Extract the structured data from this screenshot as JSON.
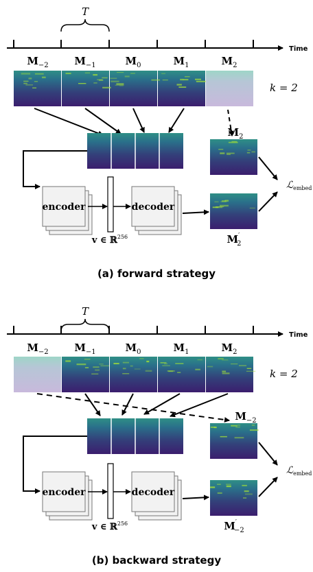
{
  "time_label": "Time",
  "T_label": "T",
  "k_label": "k = 2",
  "frame_labels": [
    {
      "base": "M",
      "sub": "−2"
    },
    {
      "base": "M",
      "sub": "−1"
    },
    {
      "base": "M",
      "sub": "0"
    },
    {
      "base": "M",
      "sub": "1"
    },
    {
      "base": "M",
      "sub": "2"
    }
  ],
  "encoder_label": "encoder",
  "decoder_label": "decoder",
  "vector_label_base": "v ∈ ℝ",
  "vector_label_sup": "256",
  "loss_base": "ℒ",
  "loss_sub": "embed",
  "panels": [
    {
      "caption": "(a) forward strategy",
      "target_sub": "2",
      "pred_sub": "2"
    },
    {
      "caption": "(b) backward strategy",
      "target_sub": "−2",
      "pred_sub": "−2"
    }
  ],
  "colors": {
    "spec_dark": "#3b1e6e",
    "spec_mid": "#2a7a8c",
    "spec_high": "#9fdc3a",
    "faded": "#c8b9dc",
    "box_fill": "#f2f2f2",
    "line": "#000000"
  }
}
